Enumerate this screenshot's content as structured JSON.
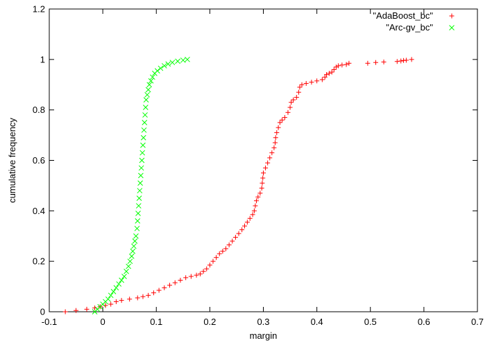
{
  "chart_data": {
    "type": "scatter",
    "title": "",
    "xlabel": "margin",
    "ylabel": "cumulative frequency",
    "xlim": [
      -0.1,
      0.7
    ],
    "ylim": [
      0,
      1.2
    ],
    "xticks": [
      "-0.1",
      "0",
      "0.1",
      "0.2",
      "0.3",
      "0.4",
      "0.5",
      "0.6",
      "0.7"
    ],
    "yticks": [
      "0",
      "0.2",
      "0.4",
      "0.6",
      "0.8",
      "1",
      "1.2"
    ],
    "grid": false,
    "legend_position": "top-right",
    "series": [
      {
        "name": "\"AdaBoost_bc\"",
        "marker": "plus",
        "color": "#ff0000",
        "points": [
          [
            -0.07,
            0.0
          ],
          [
            -0.05,
            0.005
          ],
          [
            -0.03,
            0.01
          ],
          [
            -0.015,
            0.015
          ],
          [
            -0.005,
            0.02
          ],
          [
            0.005,
            0.025
          ],
          [
            0.015,
            0.03
          ],
          [
            0.025,
            0.04
          ],
          [
            0.035,
            0.045
          ],
          [
            0.05,
            0.05
          ],
          [
            0.065,
            0.055
          ],
          [
            0.075,
            0.06
          ],
          [
            0.085,
            0.065
          ],
          [
            0.095,
            0.075
          ],
          [
            0.105,
            0.085
          ],
          [
            0.115,
            0.095
          ],
          [
            0.125,
            0.105
          ],
          [
            0.135,
            0.115
          ],
          [
            0.145,
            0.125
          ],
          [
            0.155,
            0.135
          ],
          [
            0.165,
            0.14
          ],
          [
            0.175,
            0.145
          ],
          [
            0.182,
            0.15
          ],
          [
            0.188,
            0.16
          ],
          [
            0.194,
            0.17
          ],
          [
            0.2,
            0.185
          ],
          [
            0.206,
            0.2
          ],
          [
            0.212,
            0.215
          ],
          [
            0.218,
            0.23
          ],
          [
            0.224,
            0.24
          ],
          [
            0.23,
            0.25
          ],
          [
            0.236,
            0.265
          ],
          [
            0.242,
            0.28
          ],
          [
            0.248,
            0.295
          ],
          [
            0.254,
            0.31
          ],
          [
            0.26,
            0.325
          ],
          [
            0.265,
            0.34
          ],
          [
            0.27,
            0.355
          ],
          [
            0.275,
            0.37
          ],
          [
            0.28,
            0.385
          ],
          [
            0.283,
            0.4
          ],
          [
            0.285,
            0.42
          ],
          [
            0.287,
            0.44
          ],
          [
            0.29,
            0.455
          ],
          [
            0.294,
            0.47
          ],
          [
            0.297,
            0.49
          ],
          [
            0.298,
            0.51
          ],
          [
            0.299,
            0.53
          ],
          [
            0.3,
            0.55
          ],
          [
            0.304,
            0.57
          ],
          [
            0.308,
            0.59
          ],
          [
            0.312,
            0.61
          ],
          [
            0.316,
            0.63
          ],
          [
            0.32,
            0.65
          ],
          [
            0.322,
            0.67
          ],
          [
            0.323,
            0.69
          ],
          [
            0.325,
            0.71
          ],
          [
            0.328,
            0.73
          ],
          [
            0.331,
            0.75
          ],
          [
            0.335,
            0.76
          ],
          [
            0.34,
            0.77
          ],
          [
            0.346,
            0.79
          ],
          [
            0.35,
            0.81
          ],
          [
            0.352,
            0.83
          ],
          [
            0.356,
            0.84
          ],
          [
            0.362,
            0.85
          ],
          [
            0.366,
            0.87
          ],
          [
            0.368,
            0.89
          ],
          [
            0.372,
            0.9
          ],
          [
            0.38,
            0.905
          ],
          [
            0.39,
            0.91
          ],
          [
            0.4,
            0.915
          ],
          [
            0.41,
            0.92
          ],
          [
            0.415,
            0.93
          ],
          [
            0.418,
            0.94
          ],
          [
            0.423,
            0.945
          ],
          [
            0.428,
            0.95
          ],
          [
            0.432,
            0.96
          ],
          [
            0.436,
            0.97
          ],
          [
            0.44,
            0.975
          ],
          [
            0.447,
            0.978
          ],
          [
            0.455,
            0.98
          ],
          [
            0.46,
            0.985
          ],
          [
            0.495,
            0.985
          ],
          [
            0.51,
            0.988
          ],
          [
            0.525,
            0.99
          ],
          [
            0.55,
            0.992
          ],
          [
            0.557,
            0.994
          ],
          [
            0.562,
            0.996
          ],
          [
            0.567,
            0.997
          ],
          [
            0.577,
            1.0
          ]
        ]
      },
      {
        "name": "\"Arc-gv_bc\"",
        "marker": "cross",
        "color": "#00ff00",
        "points": [
          [
            -0.015,
            0.0
          ],
          [
            -0.01,
            0.01
          ],
          [
            -0.005,
            0.02
          ],
          [
            0.0,
            0.03
          ],
          [
            0.005,
            0.04
          ],
          [
            0.01,
            0.05
          ],
          [
            0.015,
            0.065
          ],
          [
            0.02,
            0.08
          ],
          [
            0.025,
            0.095
          ],
          [
            0.03,
            0.11
          ],
          [
            0.035,
            0.125
          ],
          [
            0.04,
            0.14
          ],
          [
            0.044,
            0.16
          ],
          [
            0.048,
            0.18
          ],
          [
            0.051,
            0.2
          ],
          [
            0.054,
            0.22
          ],
          [
            0.056,
            0.24
          ],
          [
            0.058,
            0.26
          ],
          [
            0.06,
            0.28
          ],
          [
            0.062,
            0.3
          ],
          [
            0.064,
            0.33
          ],
          [
            0.065,
            0.36
          ],
          [
            0.066,
            0.39
          ],
          [
            0.067,
            0.42
          ],
          [
            0.068,
            0.45
          ],
          [
            0.069,
            0.48
          ],
          [
            0.07,
            0.51
          ],
          [
            0.071,
            0.54
          ],
          [
            0.072,
            0.57
          ],
          [
            0.073,
            0.6
          ],
          [
            0.074,
            0.63
          ],
          [
            0.075,
            0.66
          ],
          [
            0.076,
            0.69
          ],
          [
            0.077,
            0.72
          ],
          [
            0.078,
            0.75
          ],
          [
            0.079,
            0.78
          ],
          [
            0.08,
            0.81
          ],
          [
            0.081,
            0.84
          ],
          [
            0.083,
            0.86
          ],
          [
            0.085,
            0.88
          ],
          [
            0.087,
            0.9
          ],
          [
            0.09,
            0.915
          ],
          [
            0.093,
            0.93
          ],
          [
            0.097,
            0.945
          ],
          [
            0.102,
            0.955
          ],
          [
            0.108,
            0.965
          ],
          [
            0.115,
            0.975
          ],
          [
            0.122,
            0.982
          ],
          [
            0.13,
            0.988
          ],
          [
            0.14,
            0.993
          ],
          [
            0.15,
            0.997
          ],
          [
            0.158,
            1.0
          ]
        ]
      }
    ]
  }
}
